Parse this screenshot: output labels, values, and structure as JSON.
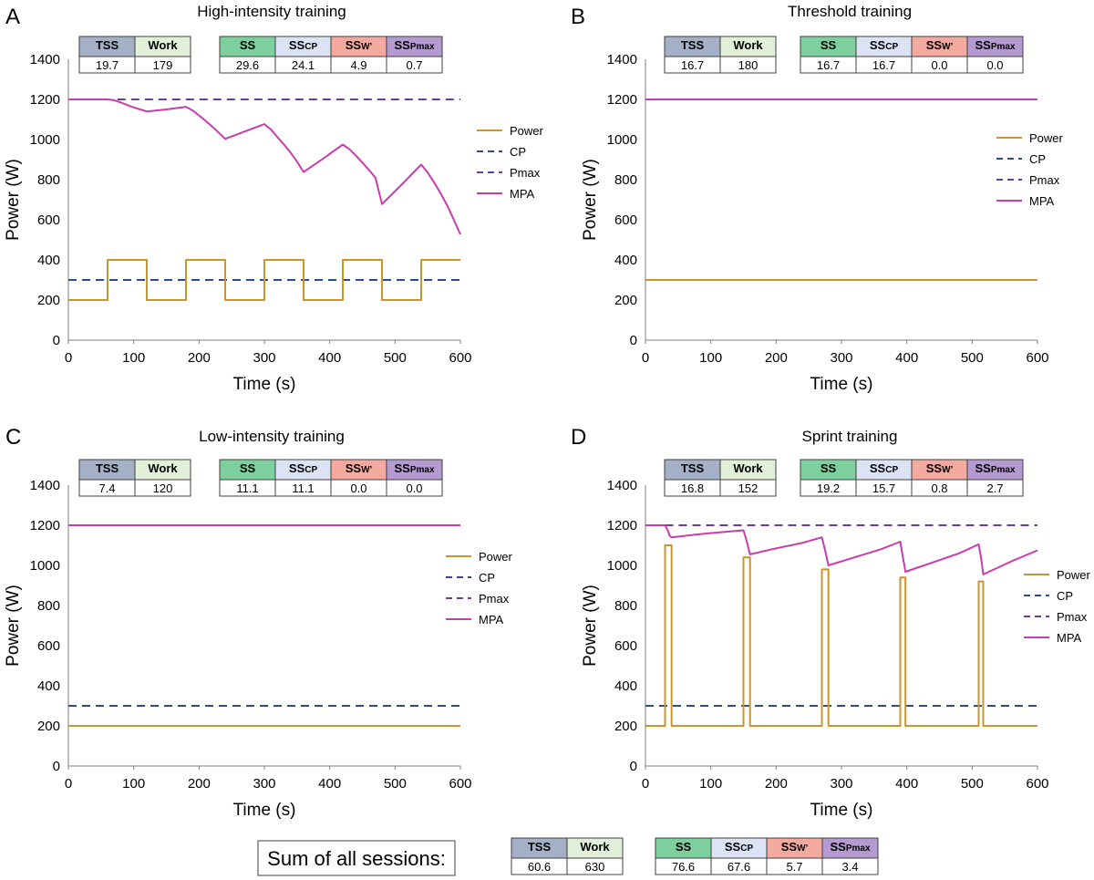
{
  "colors": {
    "power": "#c8962a",
    "cp": "#2e4c96",
    "pmax": "#6a3d9a",
    "mpa": "#c83cac",
    "axis": "#7f7f7f",
    "hdr_tss": "#a4b0c6",
    "hdr_work": "#e2efd9",
    "hdr_ss": "#7dcf9e",
    "hdr_sscp": "#dce3f5",
    "hdr_ssw": "#f4a99f",
    "hdr_sspmax": "#b49ad0"
  },
  "table_headers": {
    "tss": "TSS",
    "work": "Work",
    "ss": "SS",
    "sscp_main": "SS",
    "sscp_sub": "CP",
    "ssw_main": "SS",
    "ssw_sub": "W’",
    "sspmax_main": "SS",
    "sspmax_sub": "Pmax"
  },
  "legend": [
    "Power",
    "CP",
    "Pmax",
    "MPA"
  ],
  "summary": {
    "label": "Sum of all sessions:",
    "tss": "60.6",
    "work": "630",
    "ss": "76.6",
    "sscp": "67.6",
    "ssw": "5.7",
    "sspmax": "3.4"
  },
  "chart_data": [
    {
      "letter": "A",
      "type": "line",
      "title": "High-intensity training",
      "xlabel": "Time (s)",
      "ylabel": "Power (W)",
      "xlim": [
        0,
        600
      ],
      "ylim": [
        0,
        1400
      ],
      "xticks": [
        0,
        100,
        200,
        300,
        400,
        500,
        600
      ],
      "yticks": [
        0,
        200,
        400,
        600,
        800,
        1000,
        1200,
        1400
      ],
      "stats": {
        "tss": "19.7",
        "work": "179",
        "ss": "29.6",
        "sscp": "24.1",
        "ssw": "4.9",
        "sspmax": "0.7"
      },
      "series": [
        {
          "name": "Power",
          "style": "solid",
          "x": [
            0,
            60,
            60,
            120,
            120,
            180,
            180,
            240,
            240,
            300,
            300,
            360,
            360,
            420,
            420,
            480,
            480,
            540,
            540,
            600
          ],
          "y": [
            200,
            200,
            400,
            400,
            200,
            200,
            400,
            400,
            200,
            200,
            400,
            400,
            200,
            200,
            400,
            400,
            200,
            200,
            400,
            400
          ]
        },
        {
          "name": "CP",
          "style": "dashed",
          "x": [
            0,
            600
          ],
          "y": [
            300,
            300
          ]
        },
        {
          "name": "Pmax",
          "style": "dashed",
          "x": [
            75,
            600
          ],
          "y": [
            1200,
            1200
          ]
        },
        {
          "name": "MPA",
          "style": "solid",
          "x": [
            0,
            60,
            70,
            80,
            90,
            100,
            110,
            120,
            150,
            180,
            190,
            200,
            210,
            220,
            230,
            240,
            270,
            300,
            310,
            320,
            330,
            340,
            350,
            360,
            390,
            420,
            430,
            440,
            450,
            460,
            470,
            480,
            510,
            540,
            550,
            560,
            570,
            580,
            590,
            600
          ],
          "y": [
            1200,
            1200,
            1196,
            1185,
            1172,
            1160,
            1150,
            1140,
            1150,
            1163,
            1145,
            1120,
            1093,
            1065,
            1035,
            1003,
            1040,
            1077,
            1050,
            1012,
            975,
            935,
            890,
            838,
            905,
            975,
            952,
            920,
            885,
            848,
            810,
            678,
            775,
            875,
            835,
            785,
            730,
            670,
            600,
            527
          ]
        }
      ]
    },
    {
      "letter": "B",
      "type": "line",
      "title": "Threshold training",
      "xlabel": "Time (s)",
      "ylabel": "Power (W)",
      "xlim": [
        0,
        600
      ],
      "ylim": [
        0,
        1400
      ],
      "xticks": [
        0,
        100,
        200,
        300,
        400,
        500,
        600
      ],
      "yticks": [
        0,
        200,
        400,
        600,
        800,
        1000,
        1200,
        1400
      ],
      "stats": {
        "tss": "16.7",
        "work": "180",
        "ss": "16.7",
        "sscp": "16.7",
        "ssw": "0.0",
        "sspmax": "0.0"
      },
      "series": [
        {
          "name": "Power",
          "style": "solid",
          "x": [
            0,
            600
          ],
          "y": [
            300,
            300
          ]
        },
        {
          "name": "CP",
          "style": "dashed",
          "x": [
            0,
            600
          ],
          "y": [
            300,
            300
          ]
        },
        {
          "name": "Pmax",
          "style": "dashed",
          "x": [
            0,
            600
          ],
          "y": [
            1200,
            1200
          ]
        },
        {
          "name": "MPA",
          "style": "solid",
          "x": [
            0,
            600
          ],
          "y": [
            1200,
            1200
          ]
        }
      ]
    },
    {
      "letter": "C",
      "type": "line",
      "title": "Low-intensity training",
      "xlabel": "Time (s)",
      "ylabel": "Power (W)",
      "xlim": [
        0,
        600
      ],
      "ylim": [
        0,
        1400
      ],
      "xticks": [
        0,
        100,
        200,
        300,
        400,
        500,
        600
      ],
      "yticks": [
        0,
        200,
        400,
        600,
        800,
        1000,
        1200,
        1400
      ],
      "stats": {
        "tss": "7.4",
        "work": "120",
        "ss": "11.1",
        "sscp": "11.1",
        "ssw": "0.0",
        "sspmax": "0.0"
      },
      "series": [
        {
          "name": "Power",
          "style": "solid",
          "x": [
            0,
            600
          ],
          "y": [
            200,
            200
          ]
        },
        {
          "name": "CP",
          "style": "dashed",
          "x": [
            0,
            600
          ],
          "y": [
            300,
            300
          ]
        },
        {
          "name": "Pmax",
          "style": "dashed",
          "x": [
            0,
            600
          ],
          "y": [
            1200,
            1200
          ]
        },
        {
          "name": "MPA",
          "style": "solid",
          "x": [
            0,
            600
          ],
          "y": [
            1200,
            1200
          ]
        }
      ]
    },
    {
      "letter": "D",
      "type": "line",
      "title": "Sprint training",
      "xlabel": "Time (s)",
      "ylabel": "Power (W)",
      "xlim": [
        0,
        600
      ],
      "ylim": [
        0,
        1400
      ],
      "xticks": [
        0,
        100,
        200,
        300,
        400,
        500,
        600
      ],
      "yticks": [
        0,
        200,
        400,
        600,
        800,
        1000,
        1200,
        1400
      ],
      "stats": {
        "tss": "16.8",
        "work": "152",
        "ss": "19.2",
        "sscp": "15.7",
        "ssw": "0.8",
        "sspmax": "2.7"
      },
      "series": [
        {
          "name": "Power",
          "style": "solid",
          "x": [
            0,
            30,
            30,
            40,
            40,
            150,
            150,
            160,
            160,
            270,
            270,
            280,
            280,
            390,
            390,
            398,
            398,
            510,
            510,
            517,
            517,
            600
          ],
          "y": [
            200,
            200,
            1100,
            1100,
            200,
            200,
            1040,
            1040,
            200,
            200,
            980,
            980,
            200,
            200,
            940,
            940,
            200,
            200,
            920,
            920,
            200,
            200
          ]
        },
        {
          "name": "CP",
          "style": "dashed",
          "x": [
            0,
            600
          ],
          "y": [
            300,
            300
          ]
        },
        {
          "name": "Pmax",
          "style": "dashed",
          "x": [
            30,
            600
          ],
          "y": [
            1200,
            1200
          ]
        },
        {
          "name": "MPA",
          "style": "solid",
          "x": [
            0,
            30,
            34,
            37,
            40,
            90,
            150,
            155,
            160,
            200,
            240,
            270,
            275,
            280,
            320,
            360,
            390,
            394,
            398,
            440,
            480,
            510,
            514,
            517,
            560,
            600
          ],
          "y": [
            1200,
            1200,
            1175,
            1148,
            1140,
            1158,
            1175,
            1120,
            1055,
            1085,
            1112,
            1140,
            1075,
            1000,
            1040,
            1080,
            1118,
            1040,
            968,
            1015,
            1060,
            1105,
            1030,
            955,
            1020,
            1075
          ]
        }
      ]
    }
  ]
}
